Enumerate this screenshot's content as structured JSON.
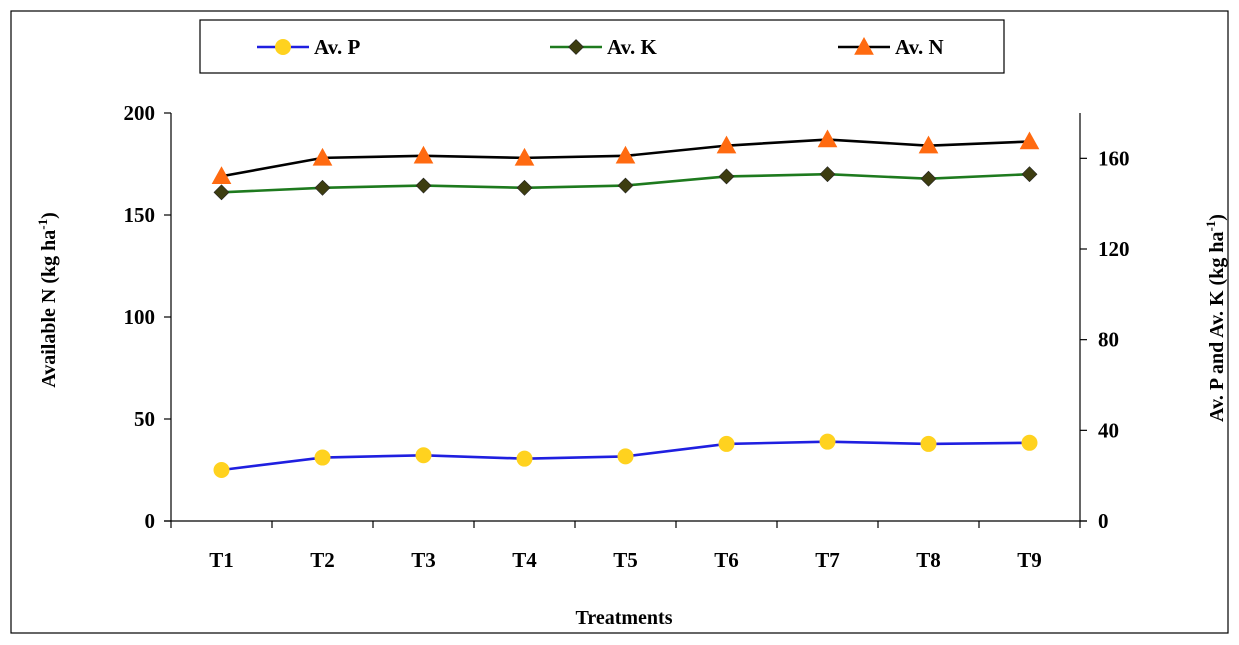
{
  "chart_data": {
    "type": "line",
    "title": "",
    "xlabel": "Treatments",
    "ylabel_left": "Available N (kg ha",
    "ylabel_left_sup": "-1",
    "ylabel_left_close": ")",
    "ylabel_right": "Av. P and Av. K (kg ha",
    "ylabel_right_sup": "-1",
    "ylabel_right_close": ")",
    "categories": [
      "T1",
      "T2",
      "T3",
      "T4",
      "T5",
      "T6",
      "T7",
      "T8",
      "T9"
    ],
    "y_left": {
      "range": [
        0,
        200
      ],
      "ticks": [
        "0",
        "50",
        "100",
        "150",
        "200"
      ]
    },
    "y_right": {
      "range": [
        0,
        180
      ],
      "ticks": [
        "0",
        "40",
        "80",
        "120",
        "160"
      ]
    },
    "legend_position": "top",
    "grid": false,
    "series": [
      {
        "name": "Av. P",
        "axis": "right",
        "color": "#1f1fe0",
        "marker": "circle",
        "marker_color": "#ffd21f",
        "values": [
          22.5,
          28,
          29,
          27.5,
          28.5,
          34,
          35,
          34,
          34.5
        ]
      },
      {
        "name": "Av. K",
        "axis": "right",
        "color": "#1e7a1e",
        "marker": "diamond",
        "marker_color": "#3d3d10",
        "values": [
          145,
          147,
          148,
          147,
          148,
          152,
          153,
          151,
          153
        ]
      },
      {
        "name": "Av. N",
        "axis": "left",
        "color": "#000000",
        "marker": "triangle",
        "marker_color": "#ff6a10",
        "values": [
          169,
          178,
          179,
          178,
          179,
          184,
          187,
          184,
          186
        ]
      }
    ]
  }
}
